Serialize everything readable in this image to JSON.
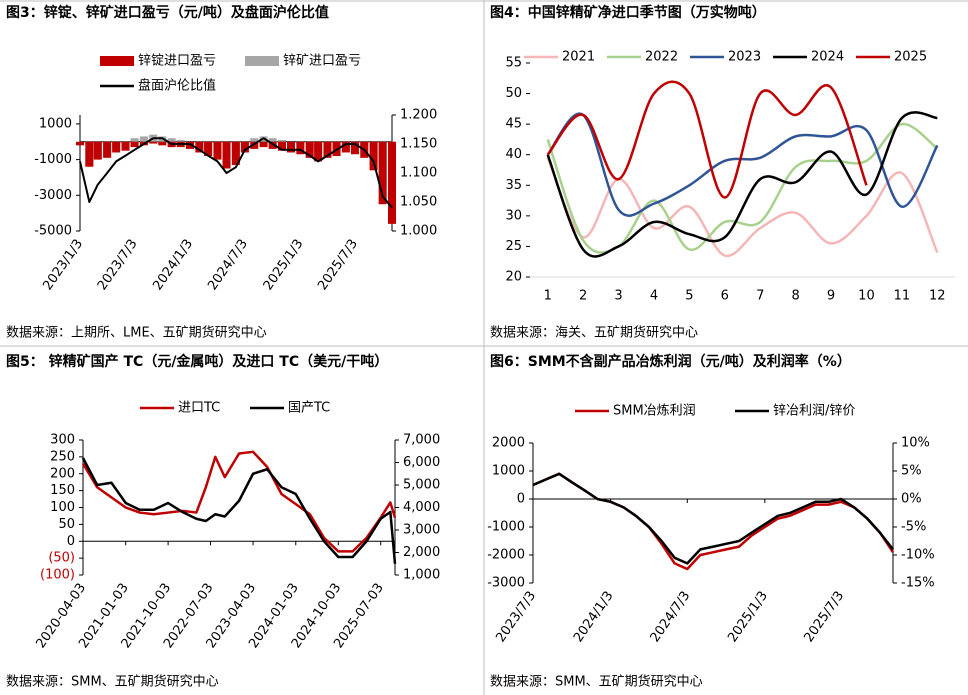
{
  "chart_data": [
    {
      "type": "combo",
      "title": "图3：锌锭、锌矿进口盈亏（元/吨）及盘面沪伦比值",
      "source": "数据来源：上期所、LME、五矿期货研究中心",
      "x": [
        "2023/1/3",
        "2023/2/3",
        "2023/3/3",
        "2023/4/3",
        "2023/5/3",
        "2023/6/3",
        "2023/7/3",
        "2023/8/3",
        "2023/9/3",
        "2023/10/3",
        "2023/11/3",
        "2023/12/3",
        "2024/1/3",
        "2024/2/3",
        "2024/3/3",
        "2024/4/3",
        "2024/5/3",
        "2024/6/3",
        "2024/7/3",
        "2024/8/3",
        "2024/9/3",
        "2024/10/3",
        "2024/11/3",
        "2024/12/3",
        "2025/1/3",
        "2025/2/3",
        "2025/3/3",
        "2025/4/3",
        "2025/5/3",
        "2025/6/3",
        "2025/7/3",
        "2025/8/3",
        "2025/9/3",
        "2025/10/3",
        "2025/11/3"
      ],
      "xlim": [
        "2023/1/3",
        "2025/11/3"
      ],
      "xticks": [
        "2023/1/3",
        "2023/7/3",
        "2024/1/3",
        "2024/7/3",
        "2025/1/3",
        "2025/7/3"
      ],
      "ylim": [
        -5000,
        1500
      ],
      "yticks": [
        1000,
        -1000,
        -3000,
        -5000
      ],
      "y2lim": [
        1.0,
        1.2
      ],
      "y2ticks": [
        {
          "value": 1.2,
          "label": "1.200"
        },
        {
          "value": 1.15,
          "label": "1.150"
        },
        {
          "value": 1.1,
          "label": "1.100"
        },
        {
          "value": 1.05,
          "label": "1.050"
        },
        {
          "value": 1.0,
          "label": "1.000"
        }
      ],
      "series": [
        {
          "name": "锌锭进口盈亏",
          "type": "bar",
          "color": "#c00000",
          "values": [
            -200,
            -1400,
            -1000,
            -900,
            -600,
            -500,
            -300,
            -200,
            -100,
            -200,
            -300,
            -300,
            -400,
            -600,
            -800,
            -1000,
            -1500,
            -1300,
            -600,
            -400,
            -300,
            -400,
            -500,
            -600,
            -700,
            -900,
            -1100,
            -900,
            -800,
            -600,
            -700,
            -900,
            -1600,
            -3500,
            -4600
          ]
        },
        {
          "name": "锌矿进口盈亏",
          "type": "bar",
          "color": "#a6a6a6",
          "values": [
            0,
            -1300,
            -900,
            -700,
            -500,
            -300,
            200,
            300,
            400,
            300,
            200,
            100,
            0,
            -200,
            -500,
            -700,
            -1000,
            -800,
            -300,
            200,
            300,
            200,
            100,
            0,
            -200,
            -400,
            -600,
            -500,
            -300,
            -200,
            -300,
            -500,
            -1200,
            -2500,
            -3200
          ]
        },
        {
          "name": "盘面沪伦比值",
          "type": "line",
          "axis": "y2",
          "color": "#000000",
          "values": [
            1.12,
            1.05,
            1.08,
            1.1,
            1.12,
            1.13,
            1.14,
            1.15,
            1.16,
            1.16,
            1.15,
            1.15,
            1.15,
            1.14,
            1.13,
            1.12,
            1.1,
            1.11,
            1.14,
            1.15,
            1.16,
            1.15,
            1.14,
            1.14,
            1.14,
            1.13,
            1.12,
            1.13,
            1.14,
            1.15,
            1.15,
            1.14,
            1.12,
            1.06,
            1.04
          ]
        }
      ]
    },
    {
      "type": "line",
      "smooth": true,
      "title": "图4：中国锌精矿净进口季节图（万实物吨）",
      "source": "数据来源：海关、五矿期货研究中心",
      "x": [
        1,
        2,
        3,
        4,
        5,
        6,
        7,
        8,
        9,
        10,
        11,
        12
      ],
      "xlim": [
        0.5,
        12.5
      ],
      "xticks": [
        1,
        2,
        3,
        4,
        5,
        6,
        7,
        8,
        9,
        10,
        11,
        12
      ],
      "ylim": [
        20,
        55
      ],
      "yticks": [
        20,
        25,
        30,
        35,
        40,
        45,
        50,
        55
      ],
      "series": [
        {
          "name": "2021",
          "color": "#f4b6b6",
          "values": [
            39.5,
            26.5,
            36,
            28,
            31.5,
            23.5,
            28,
            30.5,
            25.5,
            30,
            37,
            24
          ]
        },
        {
          "name": "2022",
          "color": "#a9d18e",
          "values": [
            42.5,
            26,
            25,
            32.5,
            24.5,
            29,
            29,
            38,
            39,
            39,
            45,
            41
          ]
        },
        {
          "name": "2023",
          "color": "#2f5597",
          "values": [
            40,
            46.5,
            31,
            32,
            35,
            39,
            39.5,
            43,
            43,
            44,
            31.5,
            41.5
          ]
        },
        {
          "name": "2024",
          "color": "#000000",
          "values": [
            40,
            24.5,
            25,
            29,
            27,
            26.5,
            36,
            35.5,
            40.5,
            33.5,
            46,
            46
          ]
        },
        {
          "name": "2025",
          "color": "#c00000",
          "values": [
            40,
            46.5,
            36,
            50,
            50,
            33,
            50,
            46.5,
            51,
            35,
            null,
            null
          ]
        }
      ]
    },
    {
      "type": "line",
      "title": "图5：  锌精矿国产 TC（元/金属吨）及进口 TC（美元/干吨）",
      "source": "数据来源：SMM、五矿期货研究中心",
      "x": [
        "2020-04-03",
        "2020-07-03",
        "2020-10-03",
        "2021-01-03",
        "2021-04-03",
        "2021-07-03",
        "2021-10-03",
        "2022-01-03",
        "2022-04-03",
        "2022-06-03",
        "2022-08-03",
        "2022-10-03",
        "2023-01-03",
        "2023-04-03",
        "2023-07-03",
        "2023-10-03",
        "2024-01-03",
        "2024-04-03",
        "2024-07-03",
        "2024-10-03",
        "2025-01-03",
        "2025-04-03",
        "2025-07-03",
        "2025-09-03",
        "2025-10-03"
      ],
      "xlim": [
        "2020-04-03",
        "2025-10-03"
      ],
      "xticks": [
        "2020-04-03",
        "2021-01-03",
        "2021-10-03",
        "2022-07-03",
        "2023-04-03",
        "2024-01-03",
        "2024-10-03",
        "2025-07-03"
      ],
      "ylim": [
        -100,
        300
      ],
      "yticks": [
        300,
        250,
        200,
        150,
        100,
        50,
        0,
        {
          "value": -50,
          "label": "(50)"
        },
        {
          "value": -100,
          "label": "(100)"
        }
      ],
      "y2lim": [
        1000,
        7000
      ],
      "y2ticks": [
        {
          "value": 7000,
          "label": "7,000"
        },
        {
          "value": 6000,
          "label": "6,000"
        },
        {
          "value": 5000,
          "label": "5,000"
        },
        {
          "value": 4000,
          "label": "4,000"
        },
        {
          "value": 3000,
          "label": "3,000"
        },
        {
          "value": 2000,
          "label": "2,000"
        },
        {
          "value": 1000,
          "label": "1,000"
        }
      ],
      "series": [
        {
          "name": "进口TC",
          "color": "#c00000",
          "values": [
            230,
            160,
            130,
            100,
            85,
            80,
            85,
            90,
            85,
            160,
            250,
            190,
            260,
            265,
            220,
            140,
            110,
            80,
            10,
            -30,
            -30,
            10,
            70,
            115,
            70
          ]
        },
        {
          "name": "国产TC",
          "axis": "y2",
          "color": "#000000",
          "values": [
            6200,
            5000,
            5100,
            4200,
            3900,
            3900,
            4200,
            3800,
            3500,
            3400,
            3700,
            3600,
            4300,
            5500,
            5700,
            4900,
            4600,
            3500,
            2500,
            1800,
            1800,
            2500,
            3500,
            3800,
            1500
          ]
        }
      ]
    },
    {
      "type": "line",
      "title": "图6：SMM不含副产品冶炼利润（元/吨）及利润率（%）",
      "source": "数据来源：SMM、五矿期货研究中心",
      "x": [
        "2023/7/3",
        "2023/8/3",
        "2023/9/3",
        "2023/10/3",
        "2023/11/3",
        "2023/12/3",
        "2024/1/3",
        "2024/2/3",
        "2024/3/3",
        "2024/4/3",
        "2024/5/3",
        "2024/6/3",
        "2024/7/3",
        "2024/8/3",
        "2024/9/3",
        "2024/10/3",
        "2024/11/3",
        "2024/12/3",
        "2025/1/3",
        "2025/2/3",
        "2025/3/3",
        "2025/4/3",
        "2025/5/3",
        "2025/6/3",
        "2025/7/3",
        "2025/8/3",
        "2025/9/3",
        "2025/10/3",
        "2025/11/3"
      ],
      "xlim": [
        "2023/7/3",
        "2025/11/3"
      ],
      "xticks": [
        "2023/7/3",
        "2024/1/3",
        "2024/7/3",
        "2025/1/3",
        "2025/7/3"
      ],
      "ylim": [
        -3000,
        2000
      ],
      "yticks": [
        2000,
        1000,
        0,
        -1000,
        -2000,
        -3000
      ],
      "y2lim": [
        -15,
        10
      ],
      "y2ticks": [
        {
          "value": 10,
          "label": "10%"
        },
        {
          "value": 5,
          "label": "5%"
        },
        {
          "value": 0,
          "label": "0%"
        },
        {
          "value": -5,
          "label": "-5%"
        },
        {
          "value": -10,
          "label": "-10%"
        },
        {
          "value": -15,
          "label": "-15%"
        }
      ],
      "series": [
        {
          "name": "SMM冶炼利润",
          "color": "#c00000",
          "values": [
            500,
            700,
            900,
            600,
            300,
            0,
            -100,
            -300,
            -600,
            -1000,
            -1600,
            -2300,
            -2500,
            -2000,
            -1900,
            -1800,
            -1700,
            -1300,
            -1000,
            -700,
            -600,
            -400,
            -200,
            -200,
            -100,
            -300,
            -700,
            -1200,
            -1900
          ]
        },
        {
          "name": "锌冶利润/锌价",
          "axis": "y2",
          "color": "#000000",
          "values": [
            2.5,
            3.5,
            4.5,
            3,
            1.5,
            0,
            -0.5,
            -1.5,
            -3,
            -5,
            -7.5,
            -10.5,
            -11.5,
            -9,
            -8.5,
            -8,
            -7.5,
            -6,
            -4.5,
            -3,
            -2.5,
            -1.5,
            -0.5,
            -0.5,
            0,
            -1.5,
            -3.5,
            -6,
            -9
          ]
        }
      ]
    }
  ]
}
